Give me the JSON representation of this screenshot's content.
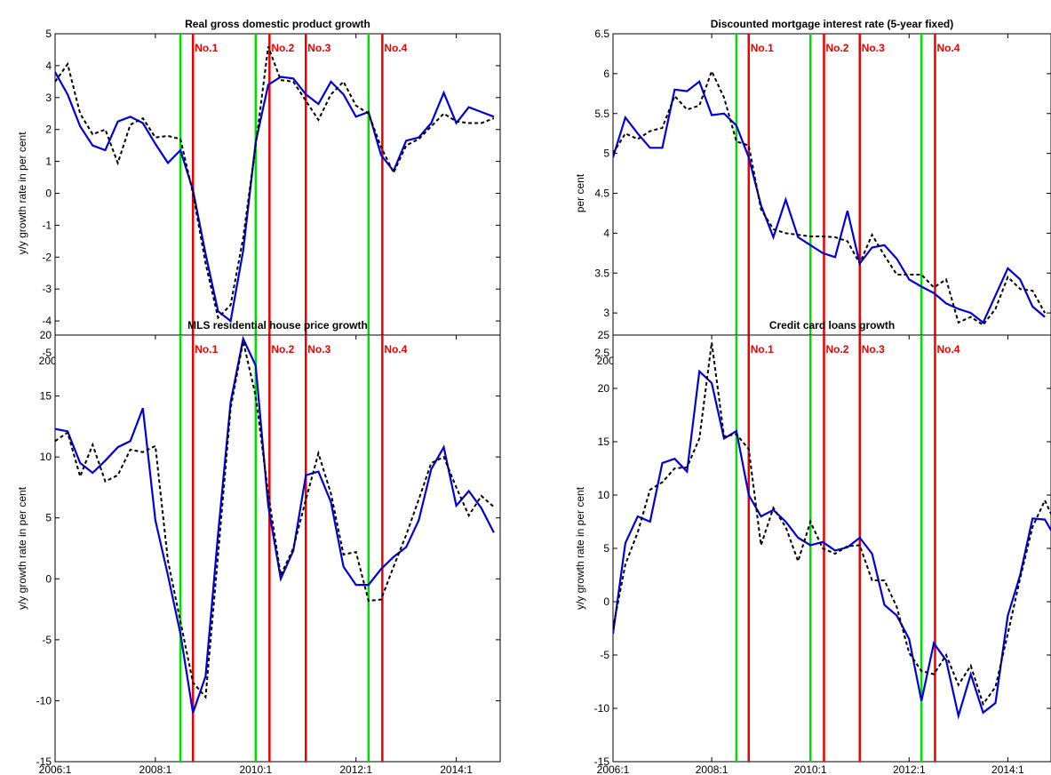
{
  "chart_data": [
    {
      "type": "line",
      "title": "Real gross domestic product growth",
      "ylabel": "y/y growth rate in per cent",
      "xlabel": "",
      "x_ticks": [
        "2006:1",
        "2008:1",
        "2010:1",
        "2012:1",
        "2014:1"
      ],
      "y_ticks": [
        "-5",
        "-4",
        "-3",
        "-2",
        "-1",
        "0",
        "1",
        "2",
        "3",
        "4",
        "5"
      ],
      "ylim": [
        -5,
        5
      ],
      "event_lines": [
        {
          "color": "#00dd00",
          "at": 10.0
        },
        {
          "color": "#ee0000",
          "at": 11.0,
          "label": "No.1"
        },
        {
          "color": "#00dd00",
          "at": 16.0
        },
        {
          "color": "#ee0000",
          "at": 17.1,
          "label": "No.2"
        },
        {
          "color": "#ee0000",
          "at": 20.0,
          "label": "No.3"
        },
        {
          "color": "#00dd00",
          "at": 25.0
        },
        {
          "color": "#ee0000",
          "at": 26.1,
          "label": "No.4"
        }
      ],
      "series": [
        {
          "style": "solid",
          "color": "#0000dd",
          "values": [
            3.8,
            3.1,
            2.1,
            1.5,
            1.35,
            2.25,
            2.4,
            2.2,
            1.55,
            0.95,
            1.35,
            0.1,
            -1.9,
            -3.7,
            -4.0,
            -1.8,
            1.6,
            3.4,
            3.65,
            3.6,
            3.1,
            2.8,
            3.5,
            3.1,
            2.4,
            2.55,
            1.2,
            0.7,
            1.65,
            1.75,
            2.2,
            3.15,
            2.2,
            2.7,
            2.55,
            2.4
          ]
        },
        {
          "style": "dashed",
          "color": "#000000",
          "values": [
            3.5,
            4.05,
            2.5,
            1.85,
            2.0,
            0.95,
            2.15,
            2.35,
            1.75,
            1.8,
            1.7,
            0.0,
            -2.2,
            -3.9,
            -3.5,
            -1.4,
            1.5,
            4.6,
            3.55,
            3.5,
            2.9,
            2.3,
            3.1,
            3.5,
            2.75,
            2.5,
            1.45,
            0.65,
            1.5,
            1.7,
            2.1,
            2.5,
            2.25,
            2.2,
            2.2,
            2.35
          ]
        }
      ]
    },
    {
      "type": "line",
      "title": "Discounted mortgage interest rate (5-year fixed)",
      "ylabel": "per cent",
      "xlabel": "",
      "x_ticks": [
        "2006:1",
        "2008:1",
        "2010:1",
        "2012:1",
        "2014:1"
      ],
      "y_ticks": [
        "2.5",
        "3",
        "3.5",
        "4",
        "4.5",
        "5",
        "5.5",
        "6",
        "6.5"
      ],
      "ylim": [
        2.5,
        6.5
      ],
      "event_lines": [
        {
          "color": "#00dd00",
          "at": 10.0
        },
        {
          "color": "#ee0000",
          "at": 11.0,
          "label": "No.1"
        },
        {
          "color": "#00dd00",
          "at": 16.0
        },
        {
          "color": "#ee0000",
          "at": 17.1,
          "label": "No.2"
        },
        {
          "color": "#ee0000",
          "at": 20.0,
          "label": "No.3"
        },
        {
          "color": "#00dd00",
          "at": 25.0
        },
        {
          "color": "#ee0000",
          "at": 26.1,
          "label": "No.4"
        }
      ],
      "series": [
        {
          "style": "solid",
          "color": "#0000dd",
          "values": [
            4.95,
            5.45,
            5.25,
            5.07,
            5.07,
            5.8,
            5.78,
            5.9,
            5.48,
            5.5,
            5.35,
            4.95,
            4.35,
            3.95,
            4.42,
            3.95,
            3.85,
            3.75,
            3.7,
            4.28,
            3.62,
            3.82,
            3.85,
            3.68,
            3.42,
            3.33,
            3.25,
            3.12,
            3.05,
            3.0,
            2.88,
            3.22,
            3.56,
            3.42,
            3.08,
            2.95
          ]
        },
        {
          "style": "dashed",
          "color": "#000000",
          "values": [
            5.0,
            5.25,
            5.18,
            5.28,
            5.32,
            5.72,
            5.55,
            5.6,
            6.03,
            5.7,
            5.15,
            5.1,
            4.3,
            4.05,
            4.0,
            3.98,
            3.96,
            3.96,
            3.95,
            3.9,
            3.62,
            3.98,
            3.72,
            3.48,
            3.48,
            3.48,
            3.32,
            3.42,
            2.88,
            2.95,
            2.85,
            3.05,
            3.45,
            3.3,
            3.28,
            3.0
          ]
        }
      ]
    },
    {
      "type": "line",
      "title": "MLS residential house price growth",
      "ylabel": "y/y growth rate in per cent",
      "xlabel": "",
      "x_ticks": [
        "2006:1",
        "2008:1",
        "2010:1",
        "2012:1",
        "2014:1"
      ],
      "y_ticks": [
        "-15",
        "-10",
        "-5",
        "0",
        "5",
        "10",
        "15",
        "20"
      ],
      "ylim": [
        -15,
        20
      ],
      "event_lines": [
        {
          "color": "#00dd00",
          "at": 10.0
        },
        {
          "color": "#ee0000",
          "at": 11.0,
          "label": "No.1"
        },
        {
          "color": "#00dd00",
          "at": 16.0
        },
        {
          "color": "#ee0000",
          "at": 17.1,
          "label": "No.2"
        },
        {
          "color": "#ee0000",
          "at": 20.0,
          "label": "No.3"
        },
        {
          "color": "#00dd00",
          "at": 25.0
        },
        {
          "color": "#ee0000",
          "at": 26.1,
          "label": "No.4"
        }
      ],
      "series": [
        {
          "style": "solid",
          "color": "#0000dd",
          "values": [
            12.3,
            12.1,
            9.5,
            8.7,
            9.7,
            10.8,
            11.3,
            14.0,
            4.8,
            0.3,
            -4.5,
            -11.0,
            -8.0,
            3.7,
            14.5,
            19.7,
            17.5,
            6.0,
            0.0,
            2.3,
            8.5,
            8.8,
            6.3,
            1.0,
            -0.5,
            -0.5,
            0.8,
            1.8,
            2.6,
            4.8,
            9.0,
            10.8,
            6.0,
            7.2,
            5.8,
            3.8
          ]
        },
        {
          "style": "dashed",
          "color": "#000000",
          "values": [
            11.3,
            12.0,
            8.4,
            11.0,
            8.0,
            8.5,
            10.6,
            10.4,
            10.9,
            1.5,
            -3.5,
            -8.5,
            -9.7,
            2.0,
            14.0,
            19.5,
            15.0,
            7.0,
            0.3,
            2.5,
            6.5,
            10.3,
            7.0,
            2.0,
            2.2,
            -1.8,
            -1.7,
            1.0,
            3.6,
            6.5,
            9.5,
            10.0,
            7.5,
            5.2,
            6.8,
            5.9
          ]
        }
      ]
    },
    {
      "type": "line",
      "title": "Credit card loans growth",
      "ylabel": "y/y growth rate in per cent",
      "xlabel": "",
      "x_ticks": [
        "2006:1",
        "2008:1",
        "2010:1",
        "2012:1",
        "2014:1"
      ],
      "y_ticks": [
        "-15",
        "-10",
        "-5",
        "0",
        "5",
        "10",
        "15",
        "20",
        "25"
      ],
      "ylim": [
        -15,
        25
      ],
      "event_lines": [
        {
          "color": "#00dd00",
          "at": 10.0
        },
        {
          "color": "#ee0000",
          "at": 11.0,
          "label": "No.1"
        },
        {
          "color": "#00dd00",
          "at": 16.0
        },
        {
          "color": "#ee0000",
          "at": 17.1,
          "label": "No.2"
        },
        {
          "color": "#ee0000",
          "at": 20.0,
          "label": "No.3"
        },
        {
          "color": "#00dd00",
          "at": 25.0
        },
        {
          "color": "#ee0000",
          "at": 26.1,
          "label": "No.4"
        }
      ],
      "series": [
        {
          "style": "solid",
          "color": "#0000dd",
          "values": [
            -3.0,
            5.5,
            8.0,
            7.5,
            13.0,
            13.4,
            12.2,
            21.6,
            20.5,
            15.3,
            16.0,
            10.0,
            8.0,
            8.6,
            7.5,
            6.0,
            5.3,
            5.6,
            4.8,
            5.1,
            6.0,
            4.5,
            -0.3,
            -1.3,
            -3.5,
            -9.3,
            -3.9,
            -5.5,
            -10.7,
            -6.8,
            -10.4,
            -9.5,
            -1.3,
            2.5,
            7.8,
            7.7,
            5.7
          ]
        },
        {
          "style": "dashed",
          "color": "#000000",
          "values": [
            -2.5,
            3.5,
            6.5,
            10.5,
            11.2,
            12.5,
            12.6,
            15.3,
            24.3,
            15.5,
            15.7,
            14.3,
            5.3,
            8.8,
            7.0,
            3.8,
            7.5,
            5.0,
            4.5,
            5.2,
            5.3,
            2.0,
            2.0,
            -0.5,
            -4.8,
            -6.5,
            -6.8,
            -5.0,
            -7.8,
            -6.0,
            -9.6,
            -8.0,
            -3.0,
            2.2,
            7.0,
            9.5,
            7.0
          ]
        }
      ]
    }
  ]
}
